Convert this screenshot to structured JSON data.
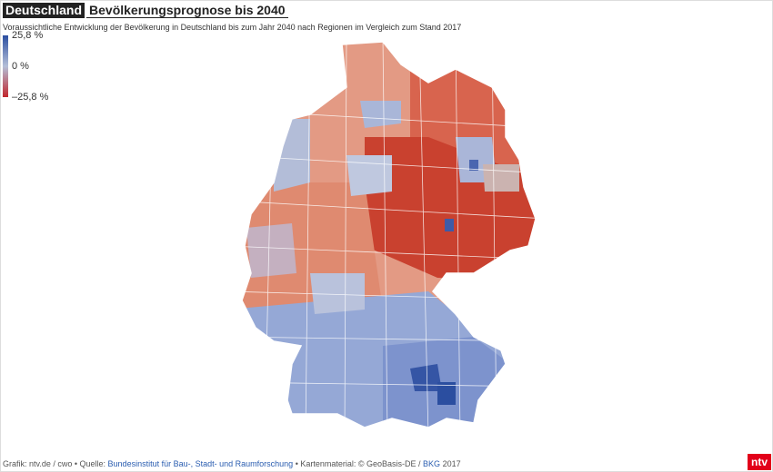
{
  "header": {
    "label": "Deutschland",
    "title": "Bevölkerungsprognose bis 2040",
    "subtitle": "Voraussichtliche Entwicklung der Bevölkerung in Deutschland bis zum Jahr 2040 nach Regionen im Vergleich zum Stand 2017"
  },
  "legend": {
    "stops": [
      {
        "value": 25.8,
        "label": "25,8 %",
        "color": "#2b4ea0"
      },
      {
        "value": 0,
        "label": "0 %",
        "color": "#b4bfd8"
      },
      {
        "value": -25.8,
        "label": "–25,8 %",
        "color": "#c1272d"
      }
    ]
  },
  "footer": {
    "credit": "Grafik: ntv.de / cwo • Quelle:",
    "source": "Bundesinstitut für Bau-, Stadt- und Raumforschung",
    "map_label": "• Kartenmaterial: © GeoBasis-DE /",
    "map_source": "BKG",
    "year": "2017"
  },
  "logo": "ntv"
}
